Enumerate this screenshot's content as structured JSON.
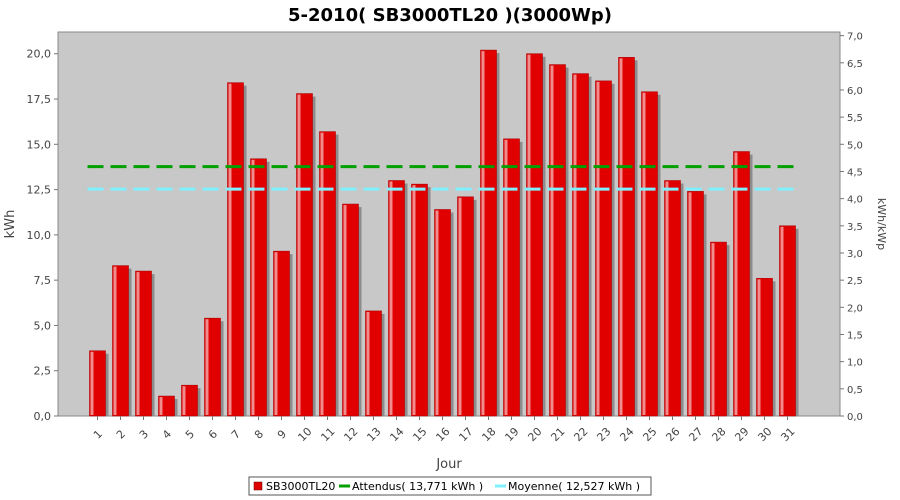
{
  "chart_data": {
    "type": "bar",
    "title": "5-2010( SB3000TL20 )(3000Wp)",
    "xlabel": "Jour",
    "ylabel": "kWh",
    "y2label": "kWh/kWp",
    "ylim": [
      0,
      21.2
    ],
    "y2lim": [
      0,
      7.0667
    ],
    "yticks": [
      "0,0",
      "2,5",
      "5,0",
      "7,5",
      "10,0",
      "12,5",
      "15,0",
      "17,5",
      "20,0"
    ],
    "ytick_values": [
      0,
      2.5,
      5,
      7.5,
      10,
      12.5,
      15,
      17.5,
      20
    ],
    "y2ticks": [
      "0,0",
      "0,5",
      "1,0",
      "1,5",
      "2,0",
      "2,5",
      "3,0",
      "3,5",
      "4,0",
      "4,5",
      "5,0",
      "5,5",
      "6,0",
      "6,5",
      "7,0"
    ],
    "y2tick_values": [
      0,
      0.5,
      1,
      1.5,
      2,
      2.5,
      3,
      3.5,
      4,
      4.5,
      5,
      5.5,
      6,
      6.5,
      7
    ],
    "grid": false,
    "legend_position": "bottom",
    "categories": [
      "1",
      "2",
      "3",
      "4",
      "5",
      "6",
      "7",
      "8",
      "9",
      "10",
      "11",
      "12",
      "13",
      "14",
      "15",
      "16",
      "17",
      "18",
      "19",
      "20",
      "21",
      "22",
      "23",
      "24",
      "25",
      "26",
      "27",
      "28",
      "29",
      "30",
      "31"
    ],
    "series": [
      {
        "name": "SB3000TL20",
        "type": "bar",
        "color": "#e00000",
        "values": [
          3.6,
          8.3,
          8.0,
          1.1,
          1.7,
          5.4,
          18.4,
          14.2,
          9.1,
          17.8,
          15.7,
          11.7,
          5.8,
          13.0,
          12.8,
          11.4,
          12.1,
          20.2,
          15.3,
          20.0,
          19.4,
          18.9,
          18.5,
          19.8,
          17.9,
          13.0,
          12.4,
          9.6,
          14.6,
          7.6,
          10.5
        ]
      },
      {
        "name": "Attendus",
        "type": "line",
        "color": "#00a000",
        "value": 13.771
      },
      {
        "name": "Moyenne",
        "type": "line",
        "color": "#7ef0ff",
        "value": 12.527
      }
    ],
    "legend": [
      {
        "label": "SB3000TL20",
        "color": "#e00000",
        "marker": "square"
      },
      {
        "label": "Attendus( 13,771 kWh )",
        "color": "#00a000",
        "marker": "line"
      },
      {
        "label": "Moyenne( 12,527 kWh )",
        "color": "#7ef0ff",
        "marker": "line"
      }
    ],
    "colors": {
      "plot_background": "#c8c8c8",
      "bar": "#e00000",
      "bar_shadow": "#8c8c8c"
    }
  }
}
